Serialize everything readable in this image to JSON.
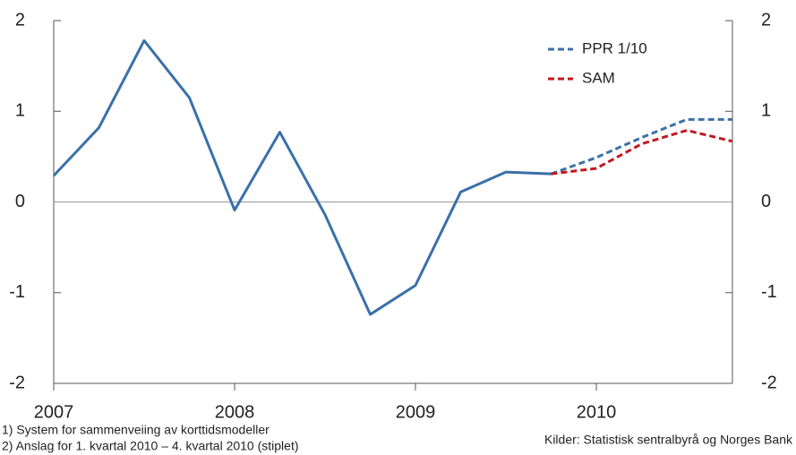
{
  "chart_data": {
    "type": "line",
    "categories": [
      "2007",
      null,
      null,
      null,
      "2008",
      null,
      null,
      null,
      "2009",
      null,
      null,
      null,
      "2010",
      null,
      null,
      null
    ],
    "series": [
      {
        "color": "#3a70aa",
        "dashed": false,
        "values": [
          0.29,
          0.82,
          1.78,
          1.15,
          -0.09,
          0.77,
          -0.14,
          -1.24,
          -0.92,
          0.11,
          0.33,
          0.31,
          null,
          null,
          null,
          null
        ]
      },
      {
        "name": "PPR 1/10",
        "color": "#3a70aa",
        "dashed": true,
        "values": [
          null,
          null,
          null,
          null,
          null,
          null,
          null,
          null,
          null,
          null,
          null,
          0.31,
          0.49,
          0.71,
          0.91,
          0.91
        ]
      },
      {
        "name": "SAM",
        "color": "#c0191f",
        "dashed": true,
        "values": [
          null,
          null,
          null,
          null,
          null,
          null,
          null,
          null,
          null,
          null,
          null,
          0.31,
          0.37,
          0.64,
          0.79,
          0.67
        ]
      }
    ],
    "ylim": [
      -2,
      2
    ],
    "yticks": [
      -2,
      -1,
      0,
      1,
      2
    ],
    "legend": "top-right",
    "footnotes": [
      "1) System for sammenveiing av korttidsmodeller",
      "2) Anslag for 1. kvartal 2010 – 4. kvartal 2010 (stiplet)"
    ],
    "source": "Kilder: Statistisk sentralbyrå og Norges Bank"
  }
}
